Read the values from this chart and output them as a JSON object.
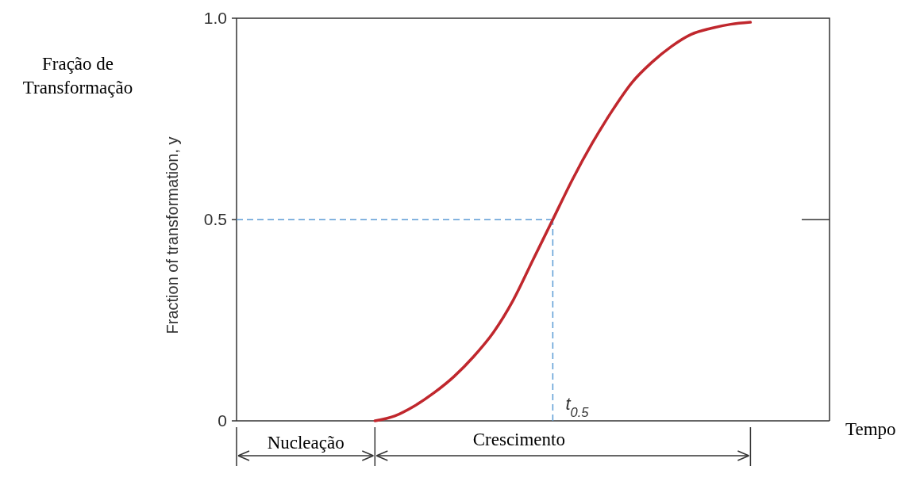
{
  "chart_data": {
    "type": "line",
    "ylabel": "Fração de Transformação",
    "categories": [
      null,
      null,
      null,
      null,
      null,
      null,
      null,
      null,
      null,
      null,
      null,
      null,
      null,
      null,
      null,
      null,
      null,
      null,
      null,
      null,
      null,
      null,
      null,
      null,
      null,
      null,
      null,
      null,
      null,
      null,
      null
    ],
    "series": [
      {
        "color": "#c0272d",
        "values": [
          null,
          null,
          null,
          null,
          null,
          null,
          null,
          0,
          0.012,
          0.037,
          0.07,
          0.11,
          0.16,
          0.22,
          0.3,
          0.4,
          0.5,
          0.6,
          0.69,
          0.77,
          0.84,
          0.89,
          0.93,
          0.96,
          0.975,
          0.985,
          0.99,
          null,
          null,
          null,
          null
        ]
      }
    ],
    "ylim": [
      0,
      1
    ],
    "yticks": [
      0,
      0.5,
      {
        "value": 1,
        "label": "1.0"
      }
    ],
    "tick_labels": "y",
    "line_style": "solid",
    "marker": "none",
    "ref_lines": [
      {
        "axis": "y",
        "value": 0.5,
        "color": "#5b9bd5",
        "line_style": "dashed"
      }
    ],
    "annotations": [
      "Fraction of transformation, y",
      "Nucleação",
      "Crescimento",
      "t$_{0.5}$",
      "Tempo"
    ]
  }
}
